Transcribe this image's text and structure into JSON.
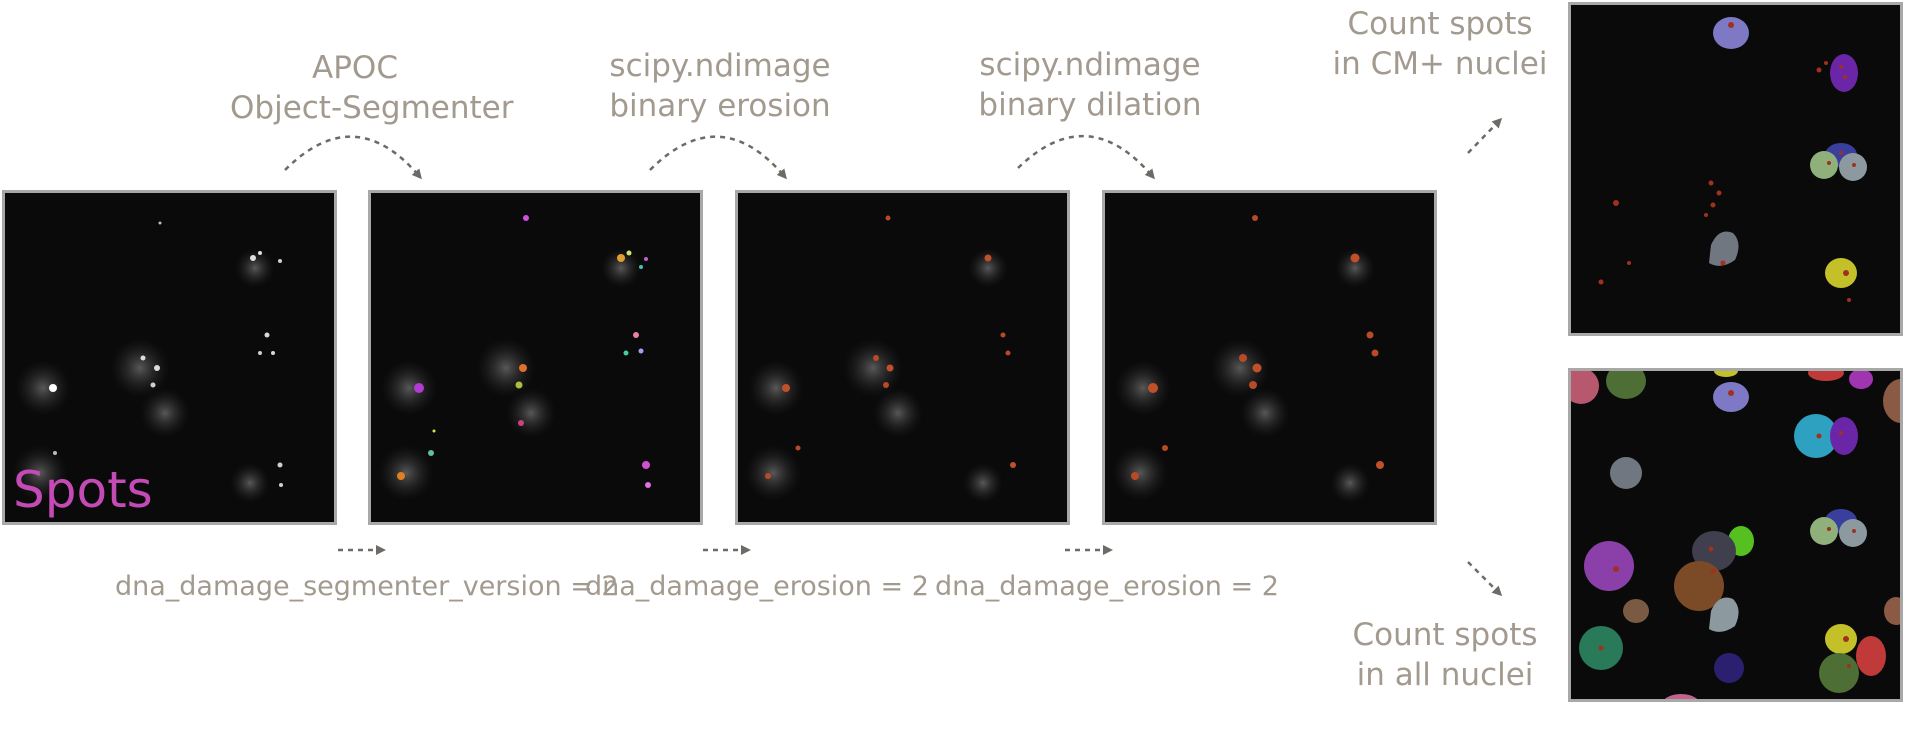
{
  "steps": [
    {
      "line1": "APOC",
      "line2": "Object-Segmenter"
    },
    {
      "line1": "scipy.ndimage",
      "line2": "binary erosion"
    },
    {
      "line1": "scipy.ndimage",
      "line2": "binary dilation"
    }
  ],
  "params": [
    "dna_damage_segmenter_version = 2",
    "dna_damage_erosion = 2",
    "dna_damage_erosion = 2"
  ],
  "outputs": {
    "top": {
      "line1": "Count spots",
      "line2": "in CM+ nuclei"
    },
    "bottom": {
      "line1": "Count spots",
      "line2": "in all nuclei"
    }
  },
  "panel_label": "Spots",
  "colors": {
    "text": "#a39a8f",
    "spots_label": "#c44bb6",
    "arrow": "#6e6a66",
    "border": "#a8a8a8"
  }
}
